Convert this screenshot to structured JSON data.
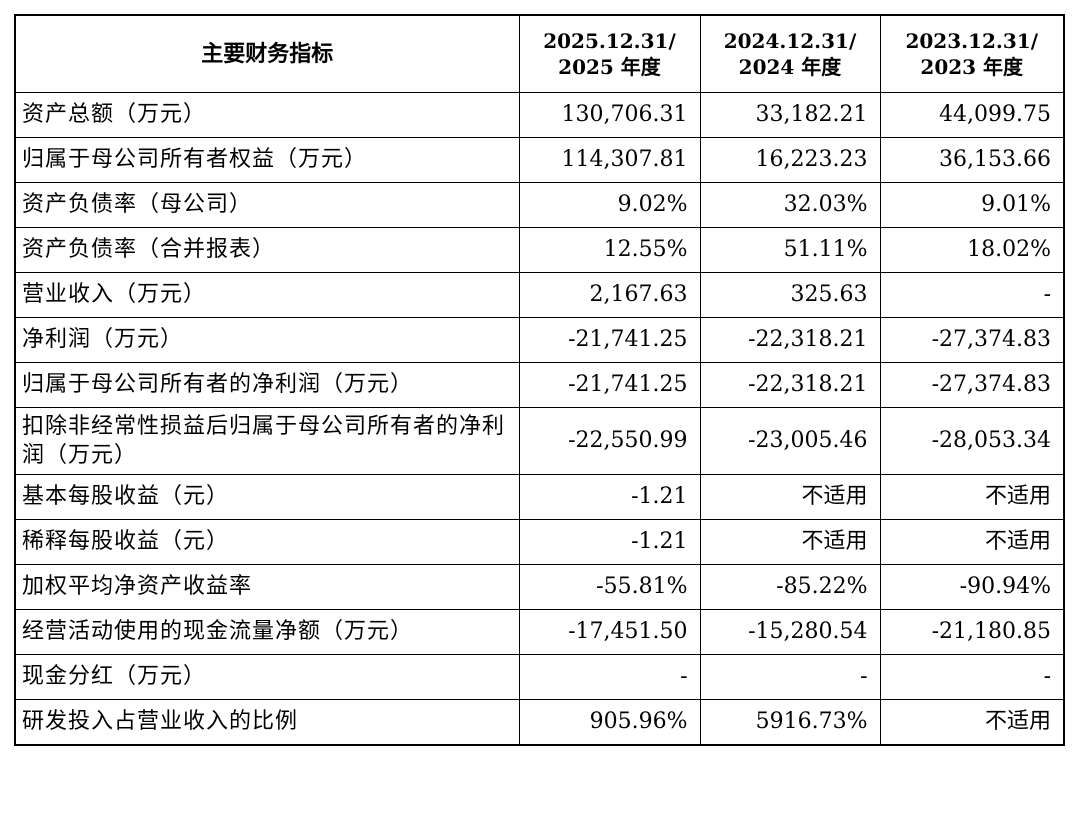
{
  "header": {
    "label": "主要财务指标",
    "years": [
      {
        "line1": "2025.12.31/",
        "line2": "2025 年度"
      },
      {
        "line1": "2024.12.31/",
        "line2": "2024 年度"
      },
      {
        "line1": "2023.12.31/",
        "line2": "2023 年度"
      }
    ]
  },
  "rows": [
    {
      "label": "资产总额（万元）",
      "values": [
        "130,706.31",
        "33,182.21",
        "44,099.75"
      ]
    },
    {
      "label": "归属于母公司所有者权益（万元）",
      "values": [
        "114,307.81",
        "16,223.23",
        "36,153.66"
      ]
    },
    {
      "label": "资产负债率（母公司）",
      "values": [
        "9.02%",
        "32.03%",
        "9.01%"
      ]
    },
    {
      "label": "资产负债率（合并报表）",
      "values": [
        "12.55%",
        "51.11%",
        "18.02%"
      ]
    },
    {
      "label": "营业收入（万元）",
      "values": [
        "2,167.63",
        "325.63",
        "-"
      ]
    },
    {
      "label": "净利润（万元）",
      "values": [
        "-21,741.25",
        "-22,318.21",
        "-27,374.83"
      ]
    },
    {
      "label": "归属于母公司所有者的净利润（万元）",
      "values": [
        "-21,741.25",
        "-22,318.21",
        "-27,374.83"
      ]
    },
    {
      "label": "扣除非经常性损益后归属于母公司所有者的净利润（万元）",
      "values": [
        "-22,550.99",
        "-23,005.46",
        "-28,053.34"
      ]
    },
    {
      "label": "基本每股收益（元）",
      "values": [
        "-1.21",
        "不适用",
        "不适用"
      ]
    },
    {
      "label": "稀释每股收益（元）",
      "values": [
        "-1.21",
        "不适用",
        "不适用"
      ]
    },
    {
      "label": "加权平均净资产收益率",
      "values": [
        "-55.81%",
        "-85.22%",
        "-90.94%"
      ]
    },
    {
      "label": "经营活动使用的现金流量净额（万元）",
      "values": [
        "-17,451.50",
        "-15,280.54",
        "-21,180.85"
      ]
    },
    {
      "label": "现金分红（万元）",
      "values": [
        "-",
        "-",
        "-"
      ]
    },
    {
      "label": "研发投入占营业收入的比例",
      "values": [
        "905.96%",
        "5916.73%",
        "不适用"
      ]
    }
  ]
}
